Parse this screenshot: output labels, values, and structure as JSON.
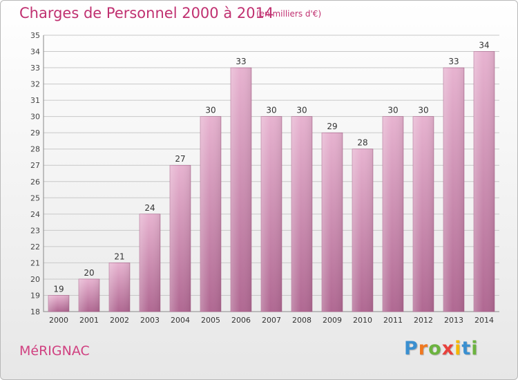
{
  "header": {
    "title": "Charges de Personnel 2000 à 2014",
    "subtitle": "(en milliers d'€)"
  },
  "footer": {
    "city": "MéRIGNAC",
    "logo": {
      "letters": [
        {
          "char": "P",
          "color": "#3a8fd0"
        },
        {
          "char": "r",
          "color": "#f07820"
        },
        {
          "char": "o",
          "color": "#6cb33f"
        },
        {
          "char": "x",
          "color": "#e8413c"
        },
        {
          "char": "i",
          "color": "#f5b700"
        },
        {
          "char": "t",
          "color": "#3a8fd0"
        },
        {
          "char": "i",
          "color": "#6cb33f"
        }
      ]
    }
  },
  "chart_data": {
    "type": "bar",
    "title": "Charges de Personnel 2000 à 2014",
    "subtitle": "(en milliers d'€)",
    "categories": [
      "2000",
      "2001",
      "2002",
      "2003",
      "2004",
      "2005",
      "2006",
      "2007",
      "2008",
      "2009",
      "2010",
      "2011",
      "2012",
      "2013",
      "2014"
    ],
    "values": [
      19,
      20,
      21,
      24,
      27,
      30,
      33,
      30,
      30,
      29,
      28,
      30,
      30,
      33,
      34
    ],
    "ylim": [
      18,
      35
    ],
    "yticks": [
      18,
      19,
      20,
      21,
      22,
      23,
      24,
      25,
      26,
      27,
      28,
      29,
      30,
      31,
      32,
      33,
      34,
      35
    ],
    "grid": true,
    "bar_color": "#c9709f",
    "bar_color_light": "#e7b3d0",
    "grid_color": "#c8c8c8"
  }
}
